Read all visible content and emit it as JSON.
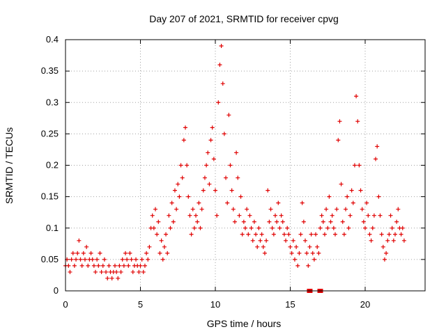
{
  "chart_data": {
    "type": "scatter",
    "title": "Day 207 of 2021, SRMTID for receiver cpvg",
    "xlabel": "GPS time / hours",
    "ylabel": "SRMTID / TECUs",
    "xlim": [
      0,
      24
    ],
    "ylim": [
      0,
      0.4
    ],
    "xticks": [
      0,
      5,
      10,
      15,
      20
    ],
    "xtick_labels": [
      "0",
      "5",
      "10",
      "15",
      "20"
    ],
    "yticks": [
      0,
      0.05,
      0.1,
      0.15,
      0.2,
      0.25,
      0.3,
      0.35,
      0.4
    ],
    "ytick_labels": [
      "0",
      "0.05",
      "0.1",
      "0.15",
      "0.2",
      "0.25",
      "0.3",
      "0.35",
      "0.4"
    ],
    "grid": true,
    "marker": "plus",
    "color": "#e00000",
    "gap_marker_color": "#e00000",
    "series": [
      {
        "name": "SRMTID",
        "x": [
          0.0,
          0.1,
          0.2,
          0.3,
          0.4,
          0.5,
          0.6,
          0.7,
          0.8,
          0.9,
          1.0,
          1.1,
          1.2,
          1.3,
          1.4,
          1.5,
          1.6,
          1.7,
          1.8,
          1.9,
          2.0,
          2.1,
          2.2,
          2.3,
          2.4,
          2.5,
          2.6,
          2.7,
          2.8,
          2.9,
          3.0,
          3.1,
          3.2,
          3.3,
          3.4,
          3.5,
          3.6,
          3.7,
          3.8,
          3.9,
          4.0,
          4.1,
          4.2,
          4.3,
          4.4,
          4.5,
          4.6,
          4.7,
          4.8,
          4.9,
          5.0,
          5.1,
          5.2,
          5.3,
          5.4,
          5.5,
          5.6,
          5.7,
          5.8,
          5.9,
          6.0,
          6.1,
          6.2,
          6.3,
          6.4,
          6.5,
          6.6,
          6.7,
          6.8,
          6.9,
          7.0,
          7.1,
          7.2,
          7.3,
          7.4,
          7.5,
          7.6,
          7.7,
          7.8,
          7.9,
          8.0,
          8.1,
          8.2,
          8.3,
          8.4,
          8.5,
          8.6,
          8.7,
          8.8,
          8.9,
          9.0,
          9.1,
          9.2,
          9.3,
          9.4,
          9.5,
          9.6,
          9.7,
          9.8,
          9.9,
          10.0,
          10.1,
          10.2,
          10.3,
          10.4,
          10.5,
          10.6,
          10.7,
          10.8,
          10.9,
          11.0,
          11.1,
          11.2,
          11.3,
          11.4,
          11.5,
          11.6,
          11.7,
          11.8,
          11.9,
          12.0,
          12.1,
          12.2,
          12.3,
          12.4,
          12.5,
          12.6,
          12.7,
          12.8,
          12.9,
          13.0,
          13.1,
          13.2,
          13.3,
          13.4,
          13.5,
          13.6,
          13.7,
          13.8,
          13.9,
          14.0,
          14.1,
          14.2,
          14.3,
          14.4,
          14.5,
          14.6,
          14.7,
          14.8,
          14.9,
          15.0,
          15.1,
          15.2,
          15.3,
          15.4,
          15.5,
          15.6,
          15.7,
          15.8,
          15.9,
          16.0,
          16.1,
          16.2,
          16.3,
          16.4,
          16.5,
          16.6,
          16.7,
          16.8,
          16.9,
          17.0,
          17.1,
          17.2,
          17.3,
          17.4,
          17.5,
          17.6,
          17.7,
          17.8,
          17.9,
          18.0,
          18.1,
          18.2,
          18.3,
          18.4,
          18.5,
          18.6,
          18.7,
          18.8,
          18.9,
          19.0,
          19.1,
          19.2,
          19.3,
          19.4,
          19.5,
          19.6,
          19.7,
          19.8,
          19.9,
          20.0,
          20.1,
          20.2,
          20.3,
          20.4,
          20.5,
          20.6,
          20.7,
          20.8,
          20.9,
          21.0,
          21.1,
          21.2,
          21.3,
          21.4,
          21.5,
          21.6,
          21.7,
          21.8,
          21.9,
          22.0,
          22.1,
          22.2,
          22.3,
          22.4,
          22.5,
          22.6
        ],
        "y": [
          0.04,
          0.05,
          0.04,
          0.03,
          0.05,
          0.06,
          0.04,
          0.05,
          0.06,
          0.08,
          0.05,
          0.04,
          0.06,
          0.05,
          0.07,
          0.04,
          0.05,
          0.06,
          0.05,
          0.04,
          0.03,
          0.05,
          0.04,
          0.06,
          0.03,
          0.04,
          0.05,
          0.03,
          0.02,
          0.04,
          0.03,
          0.02,
          0.03,
          0.04,
          0.03,
          0.02,
          0.04,
          0.03,
          0.05,
          0.04,
          0.06,
          0.05,
          0.04,
          0.06,
          0.05,
          0.03,
          0.04,
          0.05,
          0.04,
          0.03,
          0.04,
          0.05,
          0.03,
          0.04,
          0.06,
          0.05,
          0.07,
          0.1,
          0.12,
          0.1,
          0.13,
          0.09,
          0.11,
          0.06,
          0.08,
          0.05,
          0.07,
          0.09,
          0.06,
          0.12,
          0.1,
          0.14,
          0.11,
          0.16,
          0.13,
          0.17,
          0.15,
          0.2,
          0.18,
          0.24,
          0.26,
          0.2,
          0.15,
          0.12,
          0.09,
          0.13,
          0.1,
          0.12,
          0.11,
          0.14,
          0.1,
          0.13,
          0.16,
          0.18,
          0.2,
          0.22,
          0.17,
          0.24,
          0.26,
          0.21,
          0.16,
          0.12,
          0.3,
          0.36,
          0.39,
          0.33,
          0.25,
          0.18,
          0.14,
          0.28,
          0.2,
          0.16,
          0.13,
          0.11,
          0.22,
          0.18,
          0.12,
          0.15,
          0.09,
          0.11,
          0.1,
          0.13,
          0.09,
          0.12,
          0.1,
          0.08,
          0.11,
          0.09,
          0.07,
          0.1,
          0.08,
          0.09,
          0.07,
          0.06,
          0.08,
          0.16,
          0.11,
          0.13,
          0.1,
          0.09,
          0.12,
          0.11,
          0.14,
          0.1,
          0.12,
          0.11,
          0.09,
          0.08,
          0.1,
          0.09,
          0.07,
          0.06,
          0.08,
          0.05,
          0.07,
          0.04,
          0.06,
          0.09,
          0.14,
          0.11,
          0.08,
          0.06,
          0.04,
          0.07,
          0.09,
          0.06,
          0.05,
          0.09,
          0.07,
          0.06,
          0.1,
          0.12,
          0.11,
          0.09,
          0.13,
          0.1,
          0.15,
          0.11,
          0.12,
          0.1,
          0.09,
          0.13,
          0.24,
          0.27,
          0.17,
          0.11,
          0.09,
          0.13,
          0.15,
          0.1,
          0.12,
          0.16,
          0.14,
          0.2,
          0.31,
          0.27,
          0.2,
          0.16,
          0.13,
          0.11,
          0.1,
          0.14,
          0.12,
          0.09,
          0.08,
          0.1,
          0.12,
          0.21,
          0.23,
          0.15,
          0.12,
          0.09,
          0.07,
          0.05,
          0.06,
          0.08,
          0.09,
          0.12,
          0.1,
          0.08,
          0.09,
          0.11,
          0.13,
          0.1,
          0.09,
          0.1,
          0.08
        ]
      }
    ],
    "gap_markers_x": [
      16.3,
      17.0
    ]
  }
}
